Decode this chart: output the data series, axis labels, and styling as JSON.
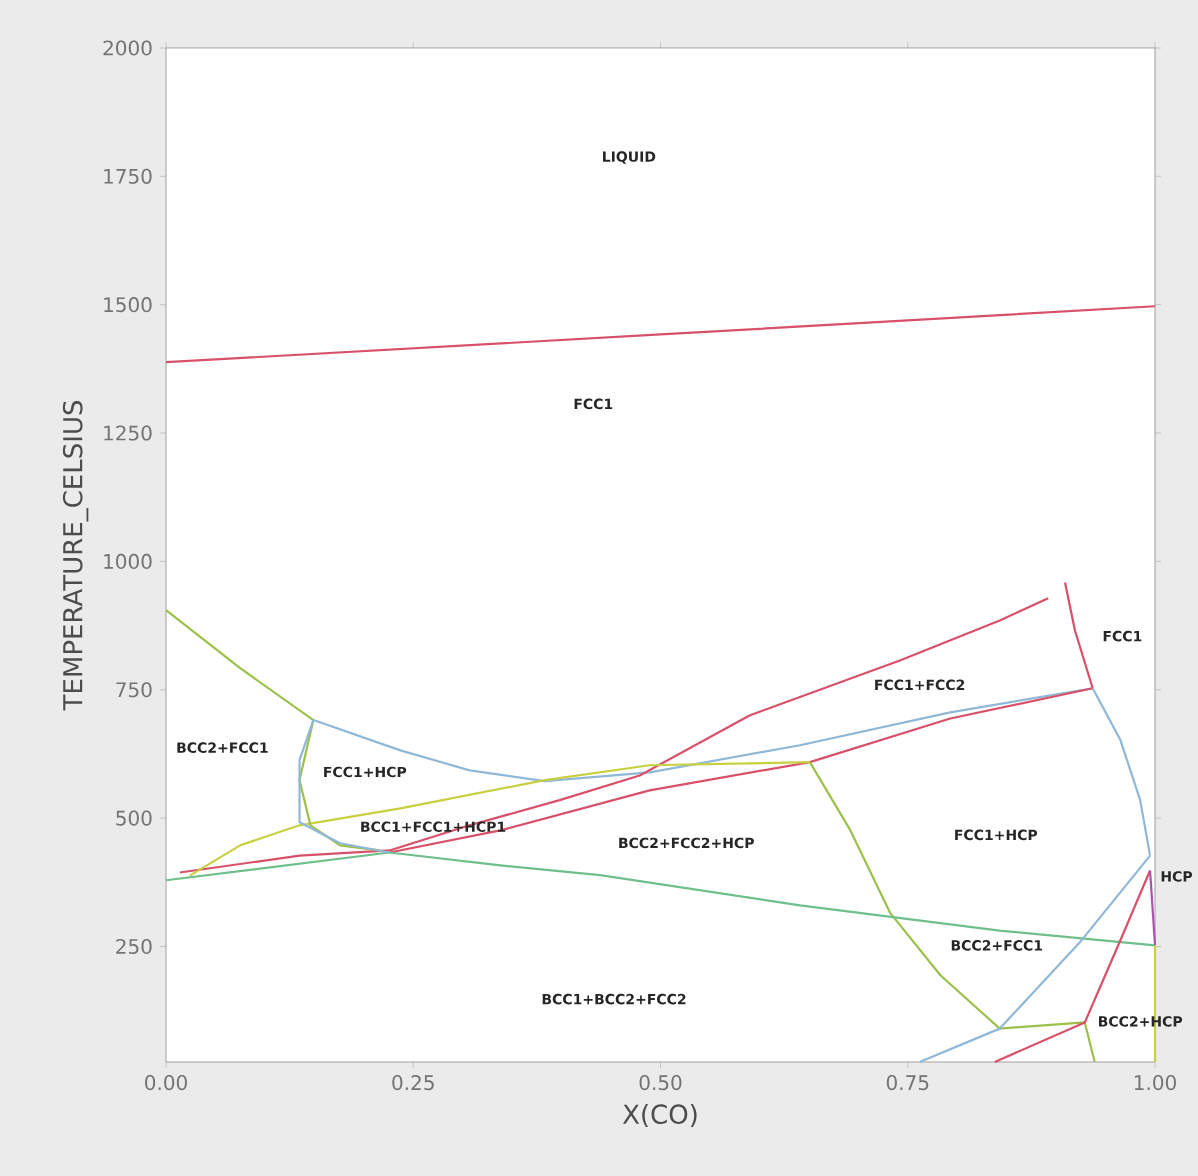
{
  "chart_data": {
    "type": "line",
    "xlabel": "X(CO)",
    "ylabel": "TEMPERATURE_CELSIUS",
    "xlim": [
      0,
      1
    ],
    "ylim": [
      25,
      2000
    ],
    "xticks": [
      {
        "value": 0,
        "label": "0.00"
      },
      {
        "value": 0.25,
        "label": "0.25"
      },
      {
        "value": 0.5,
        "label": "0.50"
      },
      {
        "value": 0.75,
        "label": "0.75"
      },
      {
        "value": 1,
        "label": "1.00"
      }
    ],
    "yticks": [
      250,
      500,
      750,
      1000,
      1250,
      1500,
      1750,
      2000
    ],
    "grid": false,
    "marker": "none",
    "line_style": "solid",
    "series": [
      {
        "color": "#d9506a",
        "x": [
          0,
          0.5,
          1
        ],
        "values": [
          1388,
          1442,
          1497
        ]
      },
      {
        "color": "#9cc04a",
        "x": [
          0,
          0.075,
          0.149
        ],
        "values": [
          905,
          792,
          691
        ]
      },
      {
        "color": "#8fb8d8",
        "x": [
          0.149,
          0.237,
          0.307,
          0.383,
          0.489,
          0.641,
          0.793,
          0.937
        ],
        "values": [
          691,
          632,
          593,
          572,
          589,
          642,
          706,
          753
        ]
      },
      {
        "color": "#d9506a",
        "x": [
          0.014,
          0.135,
          0.226,
          0.307,
          0.398,
          0.479,
          0.59,
          0.742,
          0.843,
          0.892
        ],
        "values": [
          394,
          427,
          437,
          486,
          535,
          583,
          700,
          807,
          885,
          928
        ]
      },
      {
        "color": "#d9506a",
        "x": [
          0.226,
          0.338,
          0.489,
          0.651,
          0.793,
          0.937
        ],
        "values": [
          433,
          476,
          554,
          609,
          694,
          753
        ]
      },
      {
        "color": "#d9506a",
        "x": [
          0.909,
          0.919,
          0.937
        ],
        "values": [
          959,
          866,
          753
        ]
      },
      {
        "color": "#8fb8d8",
        "x": [
          0.937,
          0.965,
          0.985,
          0.995
        ],
        "values": [
          753,
          652,
          535,
          427
        ]
      },
      {
        "color": "#c8d040",
        "x": [
          0.024,
          0.075,
          0.135,
          0.237,
          0.383,
          0.489,
          0.651
        ],
        "values": [
          388,
          447,
          486,
          519,
          574,
          603,
          609
        ]
      },
      {
        "color": "#9cc04a",
        "x": [
          0.651,
          0.692,
          0.732,
          0.783,
          0.843,
          0.884,
          0.929,
          0.939
        ],
        "values": [
          609,
          476,
          316,
          194,
          90,
          96,
          102,
          25
        ]
      },
      {
        "color": "#6fbf8a",
        "x": [
          0,
          0.226,
          0.338,
          0.439,
          0.641,
          0.843,
          1
        ],
        "values": [
          379,
          433,
          408,
          389,
          330,
          281,
          252
        ]
      },
      {
        "color": "#9cc04a",
        "x": [
          0.149,
          0.135,
          0.146,
          0.176,
          0.216
        ],
        "values": [
          691,
          574,
          486,
          447,
          437
        ]
      },
      {
        "color": "#8fb8d8",
        "x": [
          0.149,
          0.135,
          0.135,
          0.176,
          0.226
        ],
        "values": [
          691,
          613,
          492,
          451,
          433
        ]
      },
      {
        "color": "#8fb8d8",
        "x": [
          0.762,
          0.843,
          0.924,
          0.995
        ],
        "values": [
          25,
          90,
          258,
          427
        ]
      },
      {
        "color": "#d9506a",
        "x": [
          0.838,
          0.929,
          0.965,
          0.995
        ],
        "values": [
          25,
          102,
          262,
          398
        ]
      },
      {
        "color": "#b050b0",
        "x": [
          0.995,
          1
        ],
        "values": [
          398,
          252
        ]
      },
      {
        "color": "#c8d040",
        "x": [
          1,
          1
        ],
        "values": [
          252,
          25
        ]
      }
    ],
    "annotations": [
      "LIQUID",
      "FCC1",
      "FCC1",
      "FCC1+FCC2",
      "BCC2+FCC1",
      "FCC1+HCP",
      "BCC1+FCC1+HCP1",
      "BCC2+FCC2+HCP",
      "FCC1+HCP",
      "HCP",
      "BCC2+FCC1",
      "BCC1+BCC2+FCC2",
      "BCC2+HCP"
    ]
  }
}
